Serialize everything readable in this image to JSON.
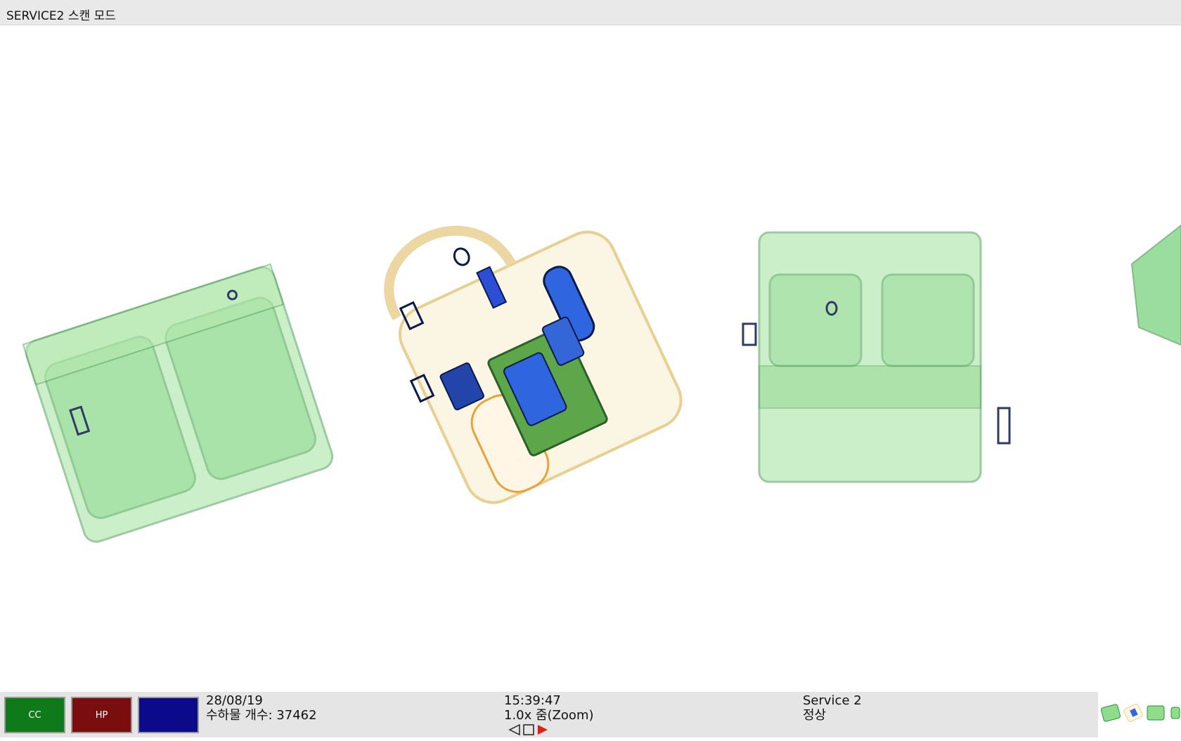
{
  "window": {
    "title": "SERVICE2 스캔 모드"
  },
  "buttons": [
    {
      "label": "CC",
      "color": "#0f7a1a"
    },
    {
      "label": "HP",
      "color": "#7a0e0e"
    },
    {
      "label": "",
      "color": "#0a0a8a"
    }
  ],
  "status": {
    "date": "28/08/19",
    "bag_count": "수하물 개수: 37462",
    "time": "15:39:47",
    "zoom": "1.0x 줌(Zoom)",
    "station": "Service 2",
    "state": "정상"
  },
  "nav": {
    "prev_icon": "triangle-left-icon",
    "stop_icon": "square-icon",
    "next_icon": "triangle-right-icon"
  },
  "colors": {
    "organic": "#59c760",
    "inorganic": "#2a4fd6",
    "metal": "#0b1a4a",
    "light": "#e9c77a"
  }
}
